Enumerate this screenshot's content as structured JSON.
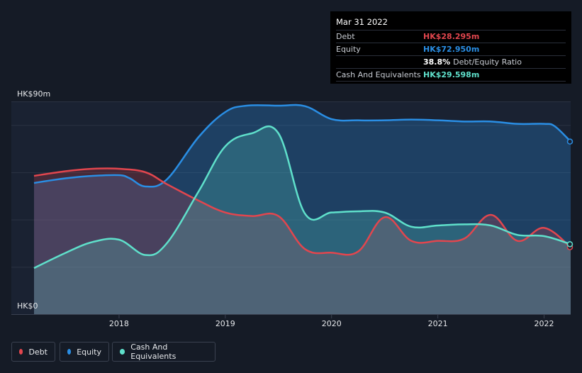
{
  "chart_data": {
    "type": "area",
    "title": "",
    "ylabel_top": "HK$90m",
    "ylabel_bottom": "HK$0",
    "ylim": [
      0,
      90
    ],
    "xlim": [
      2017.2,
      2022.25
    ],
    "x_ticks": [
      {
        "label": "2018",
        "value": 2018.0
      },
      {
        "label": "2019",
        "value": 2019.0
      },
      {
        "label": "2020",
        "value": 2020.0
      },
      {
        "label": "2021",
        "value": 2021.0
      },
      {
        "label": "2022",
        "value": 2022.0
      }
    ],
    "series": [
      {
        "name": "Equity",
        "color": "#2a8ee4",
        "x": [
          2017.2,
          2017.5,
          2017.75,
          2018.0,
          2018.1,
          2018.25,
          2018.45,
          2018.75,
          2019.0,
          2019.2,
          2019.5,
          2019.75,
          2020.0,
          2020.25,
          2020.5,
          2020.75,
          2021.0,
          2021.25,
          2021.5,
          2021.75,
          2022.0,
          2022.1,
          2022.25
        ],
        "values": [
          55.5,
          57.5,
          58.5,
          58.8,
          57.5,
          54.0,
          57.0,
          75.0,
          85.5,
          88.2,
          88.2,
          88.0,
          82.5,
          82.0,
          82.0,
          82.3,
          82.0,
          81.5,
          81.5,
          80.5,
          80.5,
          79.5,
          73.0
        ]
      },
      {
        "name": "Debt",
        "color": "#e2464e",
        "x": [
          2017.2,
          2017.5,
          2017.75,
          2018.0,
          2018.25,
          2018.45,
          2018.75,
          2019.0,
          2019.25,
          2019.5,
          2019.75,
          2020.0,
          2020.25,
          2020.5,
          2020.75,
          2021.0,
          2021.25,
          2021.5,
          2021.75,
          2022.0,
          2022.25
        ],
        "values": [
          58.5,
          60.5,
          61.5,
          61.5,
          60.0,
          55.0,
          48.0,
          43.0,
          41.5,
          41.5,
          27.5,
          26.0,
          26.5,
          41.0,
          31.0,
          31.0,
          32.0,
          42.0,
          31.0,
          36.5,
          28.3
        ]
      },
      {
        "name": "Cash And Equivalents",
        "color": "#5fe0cb",
        "x": [
          2017.2,
          2017.5,
          2017.75,
          2018.0,
          2018.25,
          2018.45,
          2018.75,
          2019.0,
          2019.25,
          2019.5,
          2019.75,
          2020.0,
          2020.25,
          2020.5,
          2020.75,
          2021.0,
          2021.25,
          2021.5,
          2021.75,
          2022.0,
          2022.25
        ],
        "values": [
          19.5,
          26.0,
          30.5,
          31.5,
          25.0,
          30.0,
          52.0,
          71.0,
          76.5,
          76.5,
          42.5,
          43.0,
          43.5,
          43.0,
          37.0,
          37.5,
          38.0,
          37.5,
          33.5,
          33.0,
          29.6
        ]
      }
    ]
  },
  "tooltip": {
    "date": "Mar 31 2022",
    "debt_label": "Debt",
    "debt_value": "HK$28.295m",
    "equity_label": "Equity",
    "equity_value": "HK$72.950m",
    "ratio_value": "38.8%",
    "ratio_label": "Debt/Equity Ratio",
    "cash_label": "Cash And Equivalents",
    "cash_value": "HK$29.598m"
  },
  "legend": {
    "debt": "Debt",
    "equity": "Equity",
    "cash": "Cash And Equivalents"
  }
}
